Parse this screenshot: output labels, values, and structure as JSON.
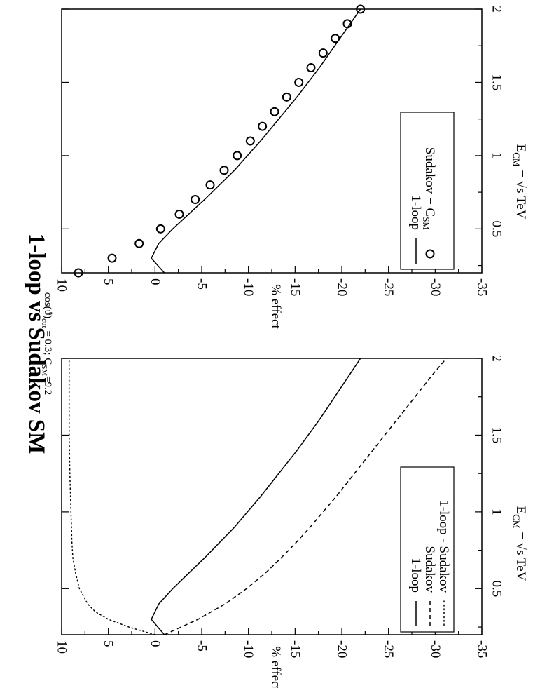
{
  "figure": {
    "title": "1-loop vs Sudakov SM",
    "subtitle": {
      "cos_main": "cos(ϑ)",
      "cos_sub": "cut",
      "cos_value": " = 0.3;  C",
      "c_sub": "SM",
      "c_value": "=9.2"
    }
  },
  "chart_data": [
    {
      "type": "line",
      "id": "left",
      "xlabel": {
        "main": "E",
        "sub": "CM",
        "rest": " = √s TeV"
      },
      "ylabel": "% effect",
      "xlim": [
        0.2,
        2.0
      ],
      "ylim": [
        -35,
        10
      ],
      "xticks": [
        0.5,
        1.0,
        1.5,
        2.0
      ],
      "xtick_labels": [
        "0.5",
        "1",
        "1.5",
        "2"
      ],
      "yticks": [
        10,
        5,
        0,
        -5,
        -10,
        -15,
        -20,
        -25,
        -30,
        -35
      ],
      "ytick_labels": [
        "10",
        "5",
        "0",
        "-5",
        "-10",
        "-15",
        "-20",
        "-25",
        "-30",
        "-35"
      ],
      "legend_position": "bottom-left",
      "series": [
        {
          "name": "1-loop",
          "style": "solid",
          "x": [
            0.2,
            0.3,
            0.4,
            0.5,
            0.6,
            0.7,
            0.8,
            0.9,
            1.0,
            1.1,
            1.2,
            1.3,
            1.4,
            1.5,
            1.6,
            1.7,
            1.8,
            1.9,
            2.0
          ],
          "y": [
            -1.0,
            0.4,
            -0.4,
            -1.9,
            -3.6,
            -5.3,
            -6.9,
            -8.5,
            -9.9,
            -11.3,
            -12.6,
            -13.9,
            -15.2,
            -16.4,
            -17.6,
            -18.7,
            -19.8,
            -20.9,
            -22.0
          ]
        },
        {
          "name": "Sudakov",
          "style": "dashed",
          "x": [
            0.2,
            0.3,
            0.4,
            0.5,
            0.6,
            0.7,
            0.8,
            0.9,
            1.0,
            1.1,
            1.2,
            1.3,
            1.4,
            1.5,
            1.6,
            1.7,
            1.8,
            1.9,
            2.0
          ],
          "y": [
            -1.0,
            -4.6,
            -7.5,
            -9.8,
            -11.8,
            -13.5,
            -15.1,
            -16.6,
            -18.0,
            -19.4,
            -20.7,
            -22.0,
            -23.3,
            -24.6,
            -25.9,
            -27.2,
            -28.5,
            -29.8,
            -31.2
          ]
        },
        {
          "name": "1-loop - Sudakov",
          "style": "dotted",
          "x": [
            0.2,
            0.25,
            0.3,
            0.35,
            0.4,
            0.5,
            0.6,
            0.7,
            0.8,
            1.0,
            1.2,
            1.5,
            1.8,
            2.0
          ],
          "y": [
            0.0,
            2.8,
            5.0,
            6.4,
            7.2,
            8.1,
            8.5,
            8.8,
            8.9,
            9.0,
            9.1,
            9.2,
            9.2,
            9.2
          ]
        }
      ]
    },
    {
      "type": "line",
      "id": "right",
      "xlabel": {
        "main": "E",
        "sub": "CM",
        "rest": " = √s TeV"
      },
      "ylabel": "% effect",
      "xlim": [
        0.2,
        2.0
      ],
      "ylim": [
        -35,
        10
      ],
      "xticks": [
        0.5,
        1.0,
        1.5,
        2.0
      ],
      "xtick_labels": [
        "0.5",
        "1",
        "1.5",
        "2"
      ],
      "yticks": [
        10,
        5,
        0,
        -5,
        -10,
        -15,
        -20,
        -25,
        -30,
        -35
      ],
      "ytick_labels": [
        "10",
        "5",
        "0",
        "-5",
        "-10",
        "-15",
        "-20",
        "-25",
        "-30",
        "-35"
      ],
      "legend_position": "bottom-left",
      "series": [
        {
          "name": "1-loop",
          "style": "solid",
          "x": [
            0.2,
            0.3,
            0.4,
            0.5,
            0.6,
            0.7,
            0.8,
            0.9,
            1.0,
            1.1,
            1.2,
            1.3,
            1.4,
            1.5,
            1.6,
            1.7,
            1.8,
            1.9,
            2.0
          ],
          "y": [
            -1.0,
            0.4,
            -0.4,
            -1.9,
            -3.6,
            -5.3,
            -6.9,
            -8.5,
            -9.9,
            -11.3,
            -12.6,
            -13.9,
            -15.2,
            -16.4,
            -17.6,
            -18.7,
            -19.8,
            -20.9,
            -22.0
          ]
        },
        {
          "name": "Sudakov + C",
          "name_sub": "SM",
          "style": "circles",
          "x": [
            0.2,
            0.3,
            0.4,
            0.5,
            0.6,
            0.7,
            0.8,
            0.9,
            1.0,
            1.1,
            1.2,
            1.3,
            1.4,
            1.5,
            1.6,
            1.7,
            1.8,
            1.9,
            2.0
          ],
          "y": [
            8.2,
            4.6,
            1.7,
            -0.6,
            -2.6,
            -4.3,
            -5.9,
            -7.4,
            -8.8,
            -10.2,
            -11.5,
            -12.8,
            -14.1,
            -15.4,
            -16.7,
            -18.0,
            -19.3,
            -20.6,
            -22.0
          ]
        }
      ]
    }
  ]
}
